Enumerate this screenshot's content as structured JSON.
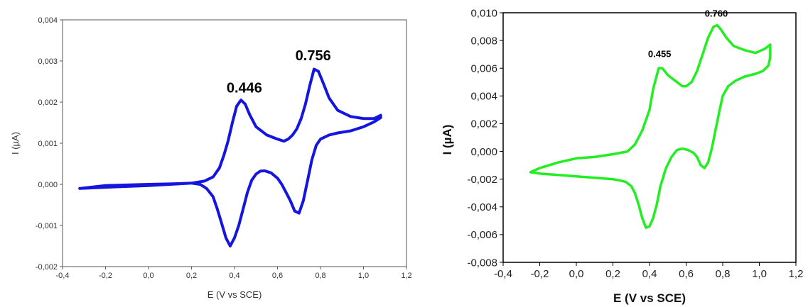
{
  "chart_data": [
    {
      "type": "line",
      "title": "",
      "xlabel": "E (V vs SCE)",
      "ylabel": "I (µA)",
      "xlim": [
        -0.4,
        1.2
      ],
      "ylim": [
        -0.002,
        0.004
      ],
      "x_ticks": [
        -0.4,
        -0.2,
        0.0,
        0.2,
        0.4,
        0.6,
        0.8,
        1.0,
        1.2
      ],
      "y_ticks": [
        -0.002,
        -0.001,
        0.0,
        0.001,
        0.002,
        0.003,
        0.004
      ],
      "x_tick_labels": [
        "-0,4",
        "-0,2",
        "0,0",
        "0,2",
        "0,4",
        "0,6",
        "0,8",
        "1,0",
        "1,2"
      ],
      "y_tick_labels": [
        "-0,002",
        "-0,001",
        "0,000",
        "0,001",
        "0,002",
        "0,003",
        "0,004"
      ],
      "grid": false,
      "color": "#1515e0",
      "annotations": [
        {
          "text": "0.446",
          "x": 0.446,
          "y": 0.00203
        },
        {
          "text": "0.756",
          "x": 0.766,
          "y": 0.00281
        }
      ],
      "series": [
        {
          "x": [
            -0.32,
            -0.2,
            0.0,
            0.1,
            0.2,
            0.26,
            0.3,
            0.33,
            0.35,
            0.37,
            0.39,
            0.41,
            0.43,
            0.45,
            0.47,
            0.5,
            0.55,
            0.6,
            0.63,
            0.65,
            0.67,
            0.69,
            0.71,
            0.73,
            0.75,
            0.77,
            0.79,
            0.81,
            0.84,
            0.88,
            0.94,
            1.0,
            1.05,
            1.08,
            1.08,
            1.05,
            1.0,
            0.94,
            0.88,
            0.84,
            0.8,
            0.78,
            0.76,
            0.74,
            0.72,
            0.7,
            0.68,
            0.66,
            0.64,
            0.62,
            0.6,
            0.57,
            0.54,
            0.52,
            0.5,
            0.48,
            0.46,
            0.44,
            0.42,
            0.4,
            0.38,
            0.36,
            0.34,
            0.32,
            0.3,
            0.27,
            0.24,
            0.2,
            0.1,
            0.0,
            -0.15,
            -0.32
          ],
          "y": [
            -0.0001,
            -3e-05,
            0.0,
            1e-05,
            3e-05,
            8e-05,
            0.00018,
            0.0004,
            0.0007,
            0.00105,
            0.0015,
            0.0019,
            0.00205,
            0.00195,
            0.0017,
            0.0014,
            0.0012,
            0.0011,
            0.00105,
            0.0011,
            0.0012,
            0.00135,
            0.0016,
            0.00195,
            0.0024,
            0.0028,
            0.00275,
            0.0025,
            0.0021,
            0.0018,
            0.00165,
            0.0016,
            0.0016,
            0.00168,
            0.00162,
            0.00152,
            0.0014,
            0.0013,
            0.00125,
            0.0012,
            0.0011,
            0.00095,
            0.0006,
            0.0001,
            -0.0004,
            -0.0007,
            -0.00065,
            -0.0004,
            -0.0002,
            0.0,
            0.00015,
            0.00028,
            0.00033,
            0.00032,
            0.00025,
            0.0001,
            -0.0002,
            -0.0006,
            -0.001,
            -0.0013,
            -0.0015,
            -0.0013,
            -0.00095,
            -0.0006,
            -0.0003,
            -0.0001,
            0.0,
            3e-05,
            0.0,
            -3e-05,
            -6e-05,
            -0.0001
          ]
        }
      ]
    },
    {
      "type": "line",
      "title": "",
      "xlabel": "E (V vs SCE)",
      "ylabel": "I (µA)",
      "xlim": [
        -0.4,
        1.2
      ],
      "ylim": [
        -0.008,
        0.01
      ],
      "x_ticks": [
        -0.4,
        -0.2,
        0.0,
        0.2,
        0.4,
        0.6,
        0.8,
        1.0,
        1.2
      ],
      "y_ticks": [
        -0.008,
        -0.006,
        -0.004,
        -0.002,
        0.0,
        0.002,
        0.004,
        0.006,
        0.008,
        0.01
      ],
      "x_tick_labels": [
        "-0,4",
        "-0,2",
        "0,0",
        "0,2",
        "0,4",
        "0,6",
        "0,8",
        "1,0",
        "1,2"
      ],
      "y_tick_labels": [
        "-0,008",
        "-0,006",
        "-0,004",
        "-0,002",
        "0,000",
        "0,002",
        "0,004",
        "0,006",
        "0,008",
        "0,010"
      ],
      "grid": false,
      "color": "#22ee22",
      "annotations": [
        {
          "text": "0.455",
          "x": 0.455,
          "y": 0.0062
        },
        {
          "text": "0.760",
          "x": 0.765,
          "y": 0.0091
        }
      ],
      "series": [
        {
          "x": [
            -0.25,
            -0.2,
            -0.1,
            0.0,
            0.1,
            0.2,
            0.28,
            0.32,
            0.36,
            0.4,
            0.42,
            0.45,
            0.47,
            0.5,
            0.55,
            0.58,
            0.6,
            0.63,
            0.66,
            0.69,
            0.72,
            0.75,
            0.77,
            0.79,
            0.82,
            0.86,
            0.92,
            0.98,
            1.03,
            1.06,
            1.06,
            1.05,
            1.02,
            0.98,
            0.92,
            0.87,
            0.83,
            0.8,
            0.78,
            0.76,
            0.74,
            0.72,
            0.7,
            0.68,
            0.66,
            0.64,
            0.61,
            0.58,
            0.55,
            0.52,
            0.49,
            0.46,
            0.44,
            0.42,
            0.4,
            0.38,
            0.36,
            0.34,
            0.32,
            0.3,
            0.27,
            0.24,
            0.2,
            0.1,
            0.0,
            -0.1,
            -0.2,
            -0.25
          ],
          "y": [
            -0.0015,
            -0.0012,
            -0.0008,
            -0.0005,
            -0.0004,
            -0.0002,
            0.0,
            0.0005,
            0.0015,
            0.003,
            0.0045,
            0.006,
            0.006,
            0.0055,
            0.005,
            0.0047,
            0.0047,
            0.005,
            0.0058,
            0.007,
            0.0082,
            0.009,
            0.0091,
            0.0088,
            0.0082,
            0.0076,
            0.0073,
            0.0071,
            0.0074,
            0.0077,
            0.0068,
            0.0062,
            0.0058,
            0.0056,
            0.0054,
            0.0051,
            0.0047,
            0.004,
            0.0028,
            0.0015,
            0.0002,
            -0.0008,
            -0.0012,
            -0.001,
            -0.0004,
            -0.0001,
            0.0001,
            0.0002,
            0.0001,
            -0.0004,
            -0.0012,
            -0.0025,
            -0.0038,
            -0.0048,
            -0.0054,
            -0.0055,
            -0.0048,
            -0.0038,
            -0.003,
            -0.0025,
            -0.0022,
            -0.0021,
            -0.002,
            -0.0019,
            -0.0018,
            -0.0017,
            -0.0016,
            -0.0015
          ]
        }
      ]
    }
  ]
}
